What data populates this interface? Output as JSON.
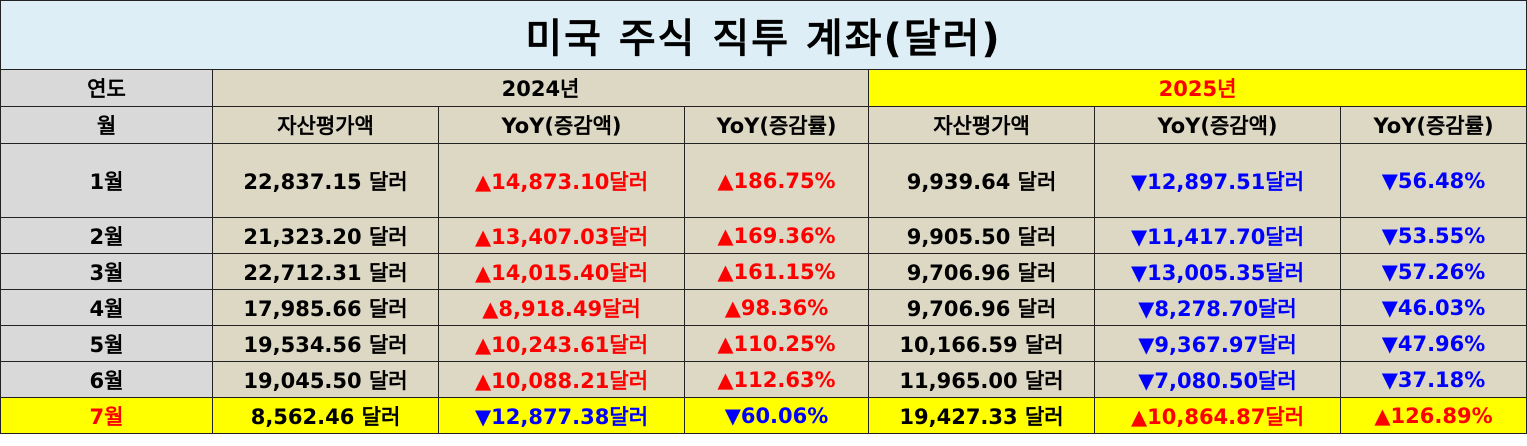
{
  "title": "미국 주식 직투 계좌(달러)",
  "header": {
    "year_label": "연도",
    "month_label": "월",
    "year_2024": "2024년",
    "year_2025": "2025년",
    "col_asset": "자산평가액",
    "col_yoy_amount": "YoY(증감액)",
    "col_yoy_rate": "YoY(증감률)"
  },
  "rows": [
    {
      "month": "1월",
      "a24": "22,837.15 달러",
      "d24": "▲14,873.10달러",
      "r24": "▲186.75%",
      "a25": "9,939.64 달러",
      "d25": "▼12,897.51달러",
      "r25": "▼56.48%"
    },
    {
      "month": "2월",
      "a24": "21,323.20 달러",
      "d24": "▲13,407.03달러",
      "r24": "▲169.36%",
      "a25": "9,905.50 달러",
      "d25": "▼11,417.70달러",
      "r25": "▼53.55%"
    },
    {
      "month": "3월",
      "a24": "22,712.31 달러",
      "d24": "▲14,015.40달러",
      "r24": "▲161.15%",
      "a25": "9,706.96 달러",
      "d25": "▼13,005.35달러",
      "r25": "▼57.26%"
    },
    {
      "month": "4월",
      "a24": "17,985.66 달러",
      "d24": "▲8,918.49달러",
      "r24": "▲98.36%",
      "a25": "9,706.96 달러",
      "d25": "▼8,278.70달러",
      "r25": "▼46.03%"
    },
    {
      "month": "5월",
      "a24": "19,534.56 달러",
      "d24": "▲10,243.61달러",
      "r24": "▲110.25%",
      "a25": "10,166.59 달러",
      "d25": "▼9,367.97달러",
      "r25": "▼47.96%"
    },
    {
      "month": "6월",
      "a24": "19,045.50 달러",
      "d24": "▲10,088.21달러",
      "r24": "▲112.63%",
      "a25": "11,965.00 달러",
      "d25": "▼7,080.50달러",
      "r25": "▼37.18%"
    },
    {
      "month": "7월",
      "a24": "8,562.46 달러",
      "d24": "▼12,877.38달러",
      "r24": "▼60.06%",
      "a25": "19,427.33 달러",
      "d25": "▲10,864.87달러",
      "r25": "▲126.89%"
    }
  ],
  "colors": {
    "title_bg": "#ddeef6",
    "label_bg": "#d9d9d9",
    "cell_bg": "#ddd8c4",
    "highlight_bg": "#ffff00",
    "increase": "#ff0000",
    "decrease": "#0000ff"
  }
}
